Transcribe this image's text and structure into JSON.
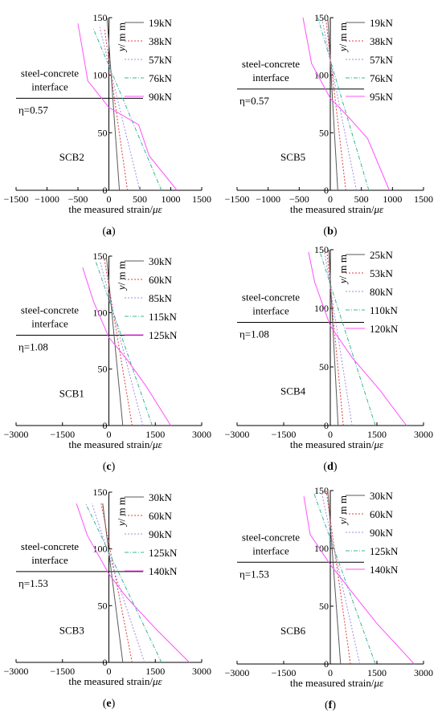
{
  "figure": {
    "series_colors": [
      "#5a5a5a",
      "#e03c3c",
      "#a08ce6",
      "#3cb496",
      "#ff50ff"
    ],
    "series_dash": [
      "solid",
      "dot",
      "dot",
      "dashdot",
      "solid"
    ]
  },
  "chart_data": [
    {
      "type": "line",
      "panel_label": "(a)",
      "specimen": "SCB2",
      "eta_label": "η=0.57",
      "interface_label_line1": "steel-concrete",
      "interface_label_line2": "interface",
      "interface_y": 80,
      "xlabel_text": "the measured strain/",
      "xlabel_unit": "με",
      "ylabel_var": "y",
      "ylabel_unit": "/ m m",
      "xlim": [
        -1500,
        1500
      ],
      "ylim": [
        0,
        150
      ],
      "xticks": [
        -1500,
        -1000,
        -500,
        0,
        500,
        1000,
        1500
      ],
      "yticks": [
        0,
        50,
        100,
        150
      ],
      "series": [
        {
          "name": "19kN",
          "points": [
            [
              170,
              0
            ],
            [
              -30,
              150
            ]
          ]
        },
        {
          "name": "38kN",
          "points": [
            [
              300,
              0
            ],
            [
              -70,
              140
            ]
          ]
        },
        {
          "name": "57kN",
          "points": [
            [
              500,
              0
            ],
            [
              -150,
              142
            ]
          ]
        },
        {
          "name": "76kN",
          "points": [
            [
              850,
              0
            ],
            [
              -250,
              140
            ]
          ]
        },
        {
          "name": "90kN",
          "points": [
            [
              1100,
              0
            ],
            [
              650,
              30
            ],
            [
              480,
              57
            ],
            [
              0,
              72
            ],
            [
              -340,
              95
            ],
            [
              -500,
              145
            ]
          ]
        }
      ]
    },
    {
      "type": "line",
      "panel_label": "(b)",
      "specimen": "SCB5",
      "eta_label": "η=0.57",
      "interface_label_line1": "steel-concrete",
      "interface_label_line2": "interface",
      "interface_y": 88,
      "xlabel_text": "the measured strain/",
      "xlabel_unit": "με",
      "ylabel_var": "y",
      "ylabel_unit": "/ m m",
      "xlim": [
        -1500,
        1500
      ],
      "ylim": [
        0,
        150
      ],
      "xticks": [
        -1500,
        -1000,
        -500,
        0,
        500,
        1000,
        1500
      ],
      "yticks": [
        0,
        50,
        100,
        150
      ],
      "series": [
        {
          "name": "19kN",
          "points": [
            [
              120,
              0
            ],
            [
              -40,
              150
            ]
          ]
        },
        {
          "name": "38kN",
          "points": [
            [
              250,
              0
            ],
            [
              -70,
              148
            ]
          ]
        },
        {
          "name": "57kN",
          "points": [
            [
              420,
              0
            ],
            [
              -130,
              148
            ]
          ]
        },
        {
          "name": "76kN",
          "points": [
            [
              620,
              0
            ],
            [
              -200,
              150
            ]
          ]
        },
        {
          "name": "95kN",
          "points": [
            [
              950,
              0
            ],
            [
              600,
              45
            ],
            [
              320,
              62
            ],
            [
              0,
              80
            ],
            [
              -300,
              110
            ],
            [
              -440,
              150
            ]
          ]
        }
      ]
    },
    {
      "type": "line",
      "panel_label": "(c)",
      "specimen": "SCB1",
      "eta_label": "η=1.08",
      "interface_label_line1": "steel-concrete",
      "interface_label_line2": "interface",
      "interface_y": 80,
      "xlabel_text": "the measured strain/",
      "xlabel_unit": "με",
      "ylabel_var": "y",
      "ylabel_unit": "/ m m",
      "xlim": [
        -3000,
        3000
      ],
      "ylim": [
        0,
        150
      ],
      "xticks": [
        -3000,
        -1500,
        0,
        1500,
        3000
      ],
      "yticks": [
        0,
        50,
        100,
        150
      ],
      "series": [
        {
          "name": "30kN",
          "points": [
            [
              450,
              0
            ],
            [
              -80,
              150
            ]
          ]
        },
        {
          "name": "60kN",
          "points": [
            [
              750,
              0
            ],
            [
              -150,
              148
            ]
          ]
        },
        {
          "name": "85kN",
          "points": [
            [
              1100,
              0
            ],
            [
              -280,
              145
            ]
          ]
        },
        {
          "name": "115kN",
          "points": [
            [
              1400,
              0
            ],
            [
              -420,
              145
            ]
          ]
        },
        {
          "name": "125kN",
          "points": [
            [
              2000,
              0
            ],
            [
              1200,
              35
            ],
            [
              600,
              58
            ],
            [
              0,
              78
            ],
            [
              -500,
              110
            ],
            [
              -850,
              140
            ]
          ]
        }
      ]
    },
    {
      "type": "line",
      "panel_label": "(d)",
      "specimen": "SCB4",
      "eta_label": "η=1.08",
      "interface_label_line1": "steel-concrete",
      "interface_label_line2": "interface",
      "interface_y": 88,
      "xlabel_text": "the measured strain/",
      "xlabel_unit": "με",
      "ylabel_var": "y",
      "ylabel_unit": "/ m m",
      "xlim": [
        -3000,
        3000
      ],
      "ylim": [
        0,
        150
      ],
      "xticks": [
        -3000,
        -1500,
        0,
        1500,
        3000
      ],
      "yticks": [
        0,
        50,
        100,
        150
      ],
      "series": [
        {
          "name": "25kN",
          "points": [
            [
              250,
              0
            ],
            [
              -50,
              150
            ]
          ]
        },
        {
          "name": "53kN",
          "points": [
            [
              420,
              0
            ],
            [
              -110,
              150
            ]
          ]
        },
        {
          "name": "80kN",
          "points": [
            [
              700,
              0
            ],
            [
              -180,
              148
            ]
          ]
        },
        {
          "name": "110kN",
          "points": [
            [
              1450,
              0
            ],
            [
              -330,
              148
            ]
          ]
        },
        {
          "name": "120kN",
          "points": [
            [
              2450,
              0
            ],
            [
              1600,
              30
            ],
            [
              700,
              58
            ],
            [
              0,
              85
            ],
            [
              -500,
              122
            ],
            [
              -700,
              148
            ]
          ]
        }
      ]
    },
    {
      "type": "line",
      "panel_label": "(e)",
      "specimen": "SCB3",
      "eta_label": "η=1.53",
      "interface_label_line1": "steel-concrete",
      "interface_label_line2": "interface",
      "interface_y": 80,
      "xlabel_text": "the measured strain/",
      "xlabel_unit": "με",
      "ylabel_var": "y",
      "ylabel_unit": "/ m m",
      "xlim": [
        -3000,
        3000
      ],
      "ylim": [
        0,
        150
      ],
      "xticks": [
        -3000,
        -1500,
        0,
        1500,
        3000
      ],
      "yticks": [
        0,
        50,
        100,
        150
      ],
      "series": [
        {
          "name": "30kN",
          "points": [
            [
              450,
              0
            ],
            [
              -200,
              140
            ]
          ]
        },
        {
          "name": "60kN",
          "points": [
            [
              750,
              0
            ],
            [
              -250,
              140
            ]
          ]
        },
        {
          "name": "90kN",
          "points": [
            [
              1150,
              0
            ],
            [
              -550,
              140
            ]
          ]
        },
        {
          "name": "125kN",
          "points": [
            [
              1700,
              0
            ],
            [
              -750,
              140
            ]
          ]
        },
        {
          "name": "140kN",
          "points": [
            [
              2600,
              0
            ],
            [
              1500,
              30
            ],
            [
              550,
              58
            ],
            [
              0,
              78
            ],
            [
              -700,
              112
            ],
            [
              -1050,
              140
            ]
          ]
        }
      ]
    },
    {
      "type": "line",
      "panel_label": "(f)",
      "specimen": "SCB6",
      "eta_label": "η=1.53",
      "interface_label_line1": "steel-concrete",
      "interface_label_line2": "interface",
      "interface_y": 88,
      "xlabel_text": "the measured strain/",
      "xlabel_unit": "με",
      "ylabel_var": "y",
      "ylabel_unit": "/ m m",
      "xlim": [
        -3000,
        3000
      ],
      "ylim": [
        0,
        150
      ],
      "xticks": [
        -3000,
        -1500,
        0,
        1500,
        3000
      ],
      "yticks": [
        0,
        50,
        100,
        150
      ],
      "series": [
        {
          "name": "30kN",
          "points": [
            [
              330,
              0
            ],
            [
              -80,
              150
            ]
          ]
        },
        {
          "name": "60kN",
          "points": [
            [
              650,
              0
            ],
            [
              -130,
              150
            ]
          ]
        },
        {
          "name": "90kN",
          "points": [
            [
              950,
              0
            ],
            [
              -280,
              148
            ]
          ]
        },
        {
          "name": "125kN",
          "points": [
            [
              1450,
              0
            ],
            [
              -530,
              148
            ]
          ]
        },
        {
          "name": "140kN",
          "points": [
            [
              2700,
              0
            ],
            [
              1500,
              35
            ],
            [
              700,
              62
            ],
            [
              0,
              86
            ],
            [
              -650,
              112
            ],
            [
              -850,
              145
            ]
          ]
        }
      ]
    }
  ]
}
